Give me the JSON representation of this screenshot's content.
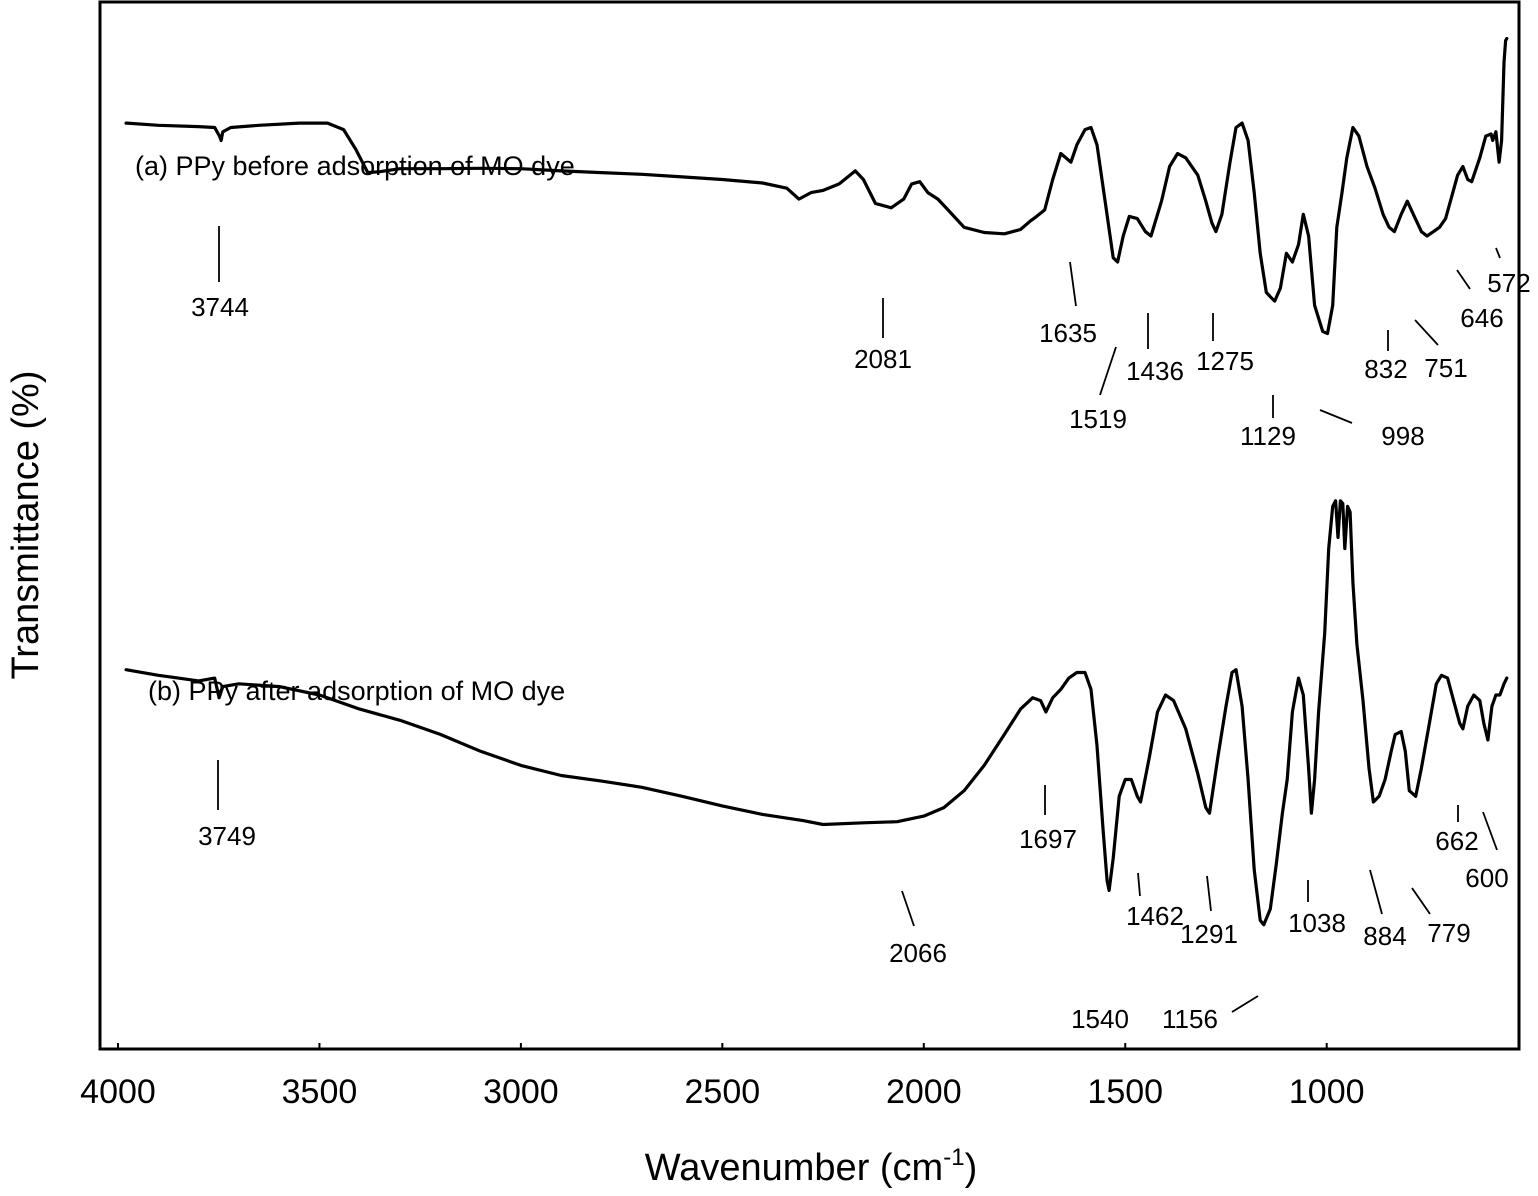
{
  "chart_data": {
    "type": "line",
    "title": "",
    "xlabel": "Wavenumber (cm",
    "xlabel_superscript": "-1",
    "xlabel_suffix": ")",
    "ylabel": "Transmittance (%)",
    "xlim": [
      4000,
      550
    ],
    "x_reversed": true,
    "y_ticks_shown": false,
    "grid": false,
    "x_ticks": [
      {
        "value": 4000,
        "label": "4000"
      },
      {
        "value": 3500,
        "label": "3500"
      },
      {
        "value": 3000,
        "label": "3000"
      },
      {
        "value": 2500,
        "label": "2500"
      },
      {
        "value": 2000,
        "label": "2000"
      },
      {
        "value": 1500,
        "label": "1500"
      },
      {
        "value": 1000,
        "label": "1000"
      }
    ],
    "series": [
      {
        "name": "(a) PPy before adsorption of MO dye",
        "y_range": [
          0,
          100
        ],
        "points": [
          [
            3980,
            82
          ],
          [
            3900,
            81.5
          ],
          [
            3800,
            81.2
          ],
          [
            3760,
            81
          ],
          [
            3748,
            79
          ],
          [
            3744,
            78
          ],
          [
            3740,
            80
          ],
          [
            3720,
            81
          ],
          [
            3650,
            81.5
          ],
          [
            3550,
            82
          ],
          [
            3480,
            82
          ],
          [
            3440,
            80.5
          ],
          [
            3410,
            76
          ],
          [
            3380,
            70.6
          ],
          [
            3350,
            70.8
          ],
          [
            3300,
            71.5
          ],
          [
            3200,
            71.5
          ],
          [
            3100,
            71.6
          ],
          [
            3000,
            71.5
          ],
          [
            2900,
            71
          ],
          [
            2800,
            70.6
          ],
          [
            2700,
            70.2
          ],
          [
            2600,
            69.6
          ],
          [
            2500,
            69
          ],
          [
            2400,
            68.2
          ],
          [
            2340,
            67
          ],
          [
            2310,
            64.5
          ],
          [
            2280,
            66
          ],
          [
            2250,
            66.5
          ],
          [
            2210,
            68
          ],
          [
            2170,
            71
          ],
          [
            2150,
            69
          ],
          [
            2120,
            63.5
          ],
          [
            2081,
            62.5
          ],
          [
            2050,
            64.5
          ],
          [
            2030,
            68
          ],
          [
            2010,
            68.5
          ],
          [
            1990,
            66
          ],
          [
            1965,
            64.5
          ],
          [
            1940,
            62
          ],
          [
            1900,
            58
          ],
          [
            1850,
            56.8
          ],
          [
            1800,
            56.5
          ],
          [
            1760,
            57.5
          ],
          [
            1735,
            59.5
          ],
          [
            1720,
            60.5
          ],
          [
            1700,
            62
          ],
          [
            1680,
            69
          ],
          [
            1660,
            75
          ],
          [
            1635,
            73
          ],
          [
            1620,
            77
          ],
          [
            1600,
            80.5
          ],
          [
            1585,
            81
          ],
          [
            1570,
            77
          ],
          [
            1550,
            64
          ],
          [
            1530,
            51
          ],
          [
            1519,
            50
          ],
          [
            1505,
            56
          ],
          [
            1490,
            60.5
          ],
          [
            1470,
            60
          ],
          [
            1450,
            57
          ],
          [
            1436,
            56
          ],
          [
            1410,
            64
          ],
          [
            1390,
            72
          ],
          [
            1370,
            75
          ],
          [
            1350,
            74
          ],
          [
            1320,
            70
          ],
          [
            1300,
            64
          ],
          [
            1285,
            59
          ],
          [
            1275,
            57
          ],
          [
            1260,
            61
          ],
          [
            1240,
            73
          ],
          [
            1225,
            81
          ],
          [
            1210,
            82
          ],
          [
            1195,
            78
          ],
          [
            1180,
            66
          ],
          [
            1165,
            52
          ],
          [
            1150,
            43
          ],
          [
            1140,
            42
          ],
          [
            1129,
            41
          ],
          [
            1115,
            44
          ],
          [
            1100,
            52
          ],
          [
            1085,
            50
          ],
          [
            1070,
            54
          ],
          [
            1058,
            61
          ],
          [
            1045,
            56
          ],
          [
            1030,
            40
          ],
          [
            1010,
            34
          ],
          [
            998,
            33.5
          ],
          [
            985,
            40
          ],
          [
            975,
            58
          ],
          [
            962,
            66
          ],
          [
            950,
            74
          ],
          [
            935,
            81
          ],
          [
            920,
            79
          ],
          [
            900,
            72
          ],
          [
            880,
            67
          ],
          [
            860,
            61
          ],
          [
            845,
            58
          ],
          [
            832,
            57
          ],
          [
            815,
            61
          ],
          [
            800,
            64
          ],
          [
            780,
            60
          ],
          [
            765,
            57
          ],
          [
            751,
            56
          ],
          [
            735,
            57
          ],
          [
            720,
            58
          ],
          [
            705,
            60
          ],
          [
            690,
            65
          ],
          [
            675,
            70
          ],
          [
            662,
            72
          ],
          [
            650,
            69
          ],
          [
            640,
            68.5
          ],
          [
            620,
            74
          ],
          [
            605,
            79
          ],
          [
            592,
            79.5
          ],
          [
            588,
            78
          ],
          [
            580,
            80
          ],
          [
            572,
            73
          ],
          [
            566,
            78
          ],
          [
            560,
            96
          ],
          [
            556,
            101
          ],
          [
            553,
            101.5
          ]
        ],
        "peak_labels": [
          "3744",
          "2081",
          "1635",
          "1519",
          "1436",
          "1275",
          "1129",
          "998",
          "832",
          "751",
          "646",
          "572"
        ]
      },
      {
        "name": "(b) PPy after adsorption of MO dye",
        "y_range": [
          0,
          100
        ],
        "points": [
          [
            3980,
            77.5
          ],
          [
            3900,
            76.5
          ],
          [
            3850,
            76
          ],
          [
            3800,
            75.5
          ],
          [
            3760,
            76
          ],
          [
            3749,
            72.5
          ],
          [
            3740,
            74.5
          ],
          [
            3700,
            75
          ],
          [
            3600,
            74.5
          ],
          [
            3500,
            73
          ],
          [
            3400,
            70.5
          ],
          [
            3300,
            68.5
          ],
          [
            3200,
            66
          ],
          [
            3100,
            63
          ],
          [
            3000,
            60.5
          ],
          [
            2900,
            58.7
          ],
          [
            2800,
            57.7
          ],
          [
            2700,
            56.6
          ],
          [
            2600,
            55
          ],
          [
            2500,
            53.3
          ],
          [
            2400,
            51.8
          ],
          [
            2300,
            50.7
          ],
          [
            2250,
            50
          ],
          [
            2150,
            50.3
          ],
          [
            2066,
            50.5
          ],
          [
            2000,
            51.5
          ],
          [
            1950,
            53
          ],
          [
            1900,
            56
          ],
          [
            1850,
            60.5
          ],
          [
            1800,
            66
          ],
          [
            1760,
            70.5
          ],
          [
            1730,
            72.5
          ],
          [
            1710,
            72
          ],
          [
            1697,
            70
          ],
          [
            1680,
            72.5
          ],
          [
            1660,
            74
          ],
          [
            1640,
            76
          ],
          [
            1620,
            77
          ],
          [
            1600,
            77
          ],
          [
            1585,
            74
          ],
          [
            1570,
            64
          ],
          [
            1555,
            49
          ],
          [
            1545,
            40
          ],
          [
            1540,
            38.3
          ],
          [
            1530,
            44
          ],
          [
            1515,
            55
          ],
          [
            1500,
            58
          ],
          [
            1485,
            58
          ],
          [
            1470,
            55
          ],
          [
            1462,
            54
          ],
          [
            1440,
            62
          ],
          [
            1420,
            70
          ],
          [
            1400,
            73
          ],
          [
            1380,
            72
          ],
          [
            1350,
            67
          ],
          [
            1320,
            59
          ],
          [
            1300,
            53
          ],
          [
            1291,
            52
          ],
          [
            1270,
            62
          ],
          [
            1250,
            71
          ],
          [
            1235,
            77
          ],
          [
            1225,
            77.5
          ],
          [
            1210,
            71
          ],
          [
            1195,
            58
          ],
          [
            1180,
            42
          ],
          [
            1165,
            33
          ],
          [
            1156,
            32.2
          ],
          [
            1140,
            35
          ],
          [
            1125,
            43
          ],
          [
            1110,
            52
          ],
          [
            1098,
            58
          ],
          [
            1085,
            70
          ],
          [
            1070,
            76
          ],
          [
            1058,
            73
          ],
          [
            1045,
            60
          ],
          [
            1038,
            52
          ],
          [
            1030,
            58
          ],
          [
            1020,
            70
          ],
          [
            1005,
            84
          ],
          [
            995,
            99
          ],
          [
            985,
            106.5
          ],
          [
            978,
            107.5
          ],
          [
            972,
            101
          ],
          [
            966,
            107.5
          ],
          [
            960,
            107
          ],
          [
            955,
            99
          ],
          [
            948,
            106.5
          ],
          [
            942,
            105.5
          ],
          [
            935,
            93
          ],
          [
            925,
            82
          ],
          [
            910,
            72
          ],
          [
            895,
            60
          ],
          [
            884,
            54
          ],
          [
            870,
            55
          ],
          [
            855,
            58
          ],
          [
            840,
            63
          ],
          [
            830,
            66
          ],
          [
            815,
            66.5
          ],
          [
            805,
            63
          ],
          [
            795,
            56
          ],
          [
            779,
            55
          ],
          [
            765,
            60
          ],
          [
            745,
            68
          ],
          [
            728,
            75
          ],
          [
            715,
            76.5
          ],
          [
            700,
            76
          ],
          [
            685,
            72
          ],
          [
            670,
            68
          ],
          [
            662,
            67
          ],
          [
            650,
            71
          ],
          [
            635,
            73
          ],
          [
            620,
            72
          ],
          [
            610,
            68
          ],
          [
            600,
            65
          ],
          [
            590,
            71
          ],
          [
            580,
            73
          ],
          [
            570,
            73
          ],
          [
            560,
            75
          ],
          [
            553,
            76
          ]
        ],
        "peak_labels": [
          "3749",
          "2066",
          "1697",
          "1540",
          "1462",
          "1291",
          "1156",
          "1038",
          "884",
          "779",
          "662",
          "600"
        ]
      }
    ]
  }
}
